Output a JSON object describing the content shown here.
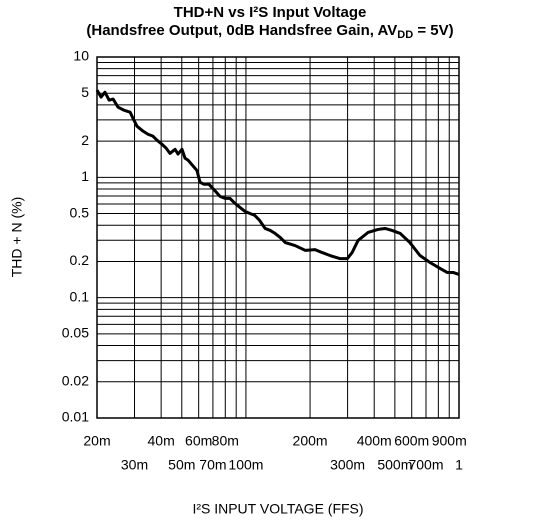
{
  "chart_data": {
    "type": "line",
    "title": "THD+N vs I²S Input Voltage",
    "subtitle": [
      "(Handsfree Output, 0dB Handsfree Gain, AV",
      "DD",
      " = 5V)"
    ],
    "x_label": "I²S INPUT VOLTAGE (FFS)",
    "y_label": "THD + N (%)",
    "log_x": true,
    "log_y": true,
    "grid": true,
    "xlim": [
      0.02,
      1
    ],
    "ylim": [
      0.01,
      10
    ],
    "xticks": [
      {
        "value": 0.02,
        "label": "20m"
      },
      {
        "value": 0.03,
        "label": "30m"
      },
      {
        "value": 0.04,
        "label": "40m"
      },
      {
        "value": 0.05,
        "label": "50m"
      },
      {
        "value": 0.06,
        "label": "60m"
      },
      {
        "value": 0.07,
        "label": "70m"
      },
      {
        "value": 0.08,
        "label": "80m"
      },
      {
        "value": 0.1,
        "label": "100m"
      },
      {
        "value": 0.2,
        "label": "200m"
      },
      {
        "value": 0.3,
        "label": "300m"
      },
      {
        "value": 0.4,
        "label": "400m"
      },
      {
        "value": 0.5,
        "label": "500m"
      },
      {
        "value": 0.6,
        "label": "600m"
      },
      {
        "value": 0.7,
        "label": "700m"
      },
      {
        "value": 0.9,
        "label": "900m"
      },
      1
    ],
    "xminor": [
      0.09,
      0.8
    ],
    "yticks": [
      10,
      5,
      2,
      1,
      0.5,
      0.2,
      0.1,
      0.05,
      0.02,
      0.01
    ],
    "yminor": [
      0.03,
      0.04,
      0.06,
      0.07,
      0.08,
      0.09,
      0.3,
      0.4,
      0.6,
      0.7,
      0.8,
      0.9,
      3,
      4,
      6,
      7,
      8,
      9
    ],
    "x": [
      0.02,
      0.0209,
      0.0218,
      0.0228,
      0.0238,
      0.0251,
      0.0268,
      0.0286,
      0.0295,
      0.0308,
      0.0329,
      0.0347,
      0.0366,
      0.0383,
      0.0404,
      0.0422,
      0.044,
      0.0465,
      0.048,
      0.0501,
      0.0518,
      0.0535,
      0.0565,
      0.0589,
      0.0609,
      0.0636,
      0.0671,
      0.0708,
      0.0756,
      0.0798,
      0.0842,
      0.0889,
      0.0938,
      0.099,
      0.1045,
      0.11,
      0.116,
      0.123,
      0.13,
      0.137,
      0.145,
      0.153,
      0.17,
      0.19,
      0.211,
      0.228,
      0.248,
      0.277,
      0.299,
      0.315,
      0.336,
      0.374,
      0.417,
      0.45,
      0.485,
      0.53,
      0.588,
      0.656,
      0.731,
      0.815,
      0.88,
      0.938,
      1
    ],
    "series": [
      {
        "name": "THD+N",
        "color": "#000000",
        "values": [
          5.31,
          4.64,
          5.1,
          4.38,
          4.47,
          3.83,
          3.61,
          3.48,
          3.1,
          2.66,
          2.42,
          2.28,
          2.2,
          2.03,
          1.88,
          1.75,
          1.58,
          1.71,
          1.56,
          1.71,
          1.44,
          1.39,
          1.24,
          1.14,
          0.91,
          0.875,
          0.875,
          0.79,
          0.695,
          0.668,
          0.668,
          0.607,
          0.562,
          0.521,
          0.501,
          0.483,
          0.438,
          0.376,
          0.362,
          0.342,
          0.316,
          0.287,
          0.271,
          0.247,
          0.251,
          0.237,
          0.224,
          0.211,
          0.211,
          0.237,
          0.299,
          0.348,
          0.369,
          0.376,
          0.362,
          0.342,
          0.287,
          0.224,
          0.196,
          0.175,
          0.162,
          0.162,
          0.156
        ]
      }
    ]
  }
}
